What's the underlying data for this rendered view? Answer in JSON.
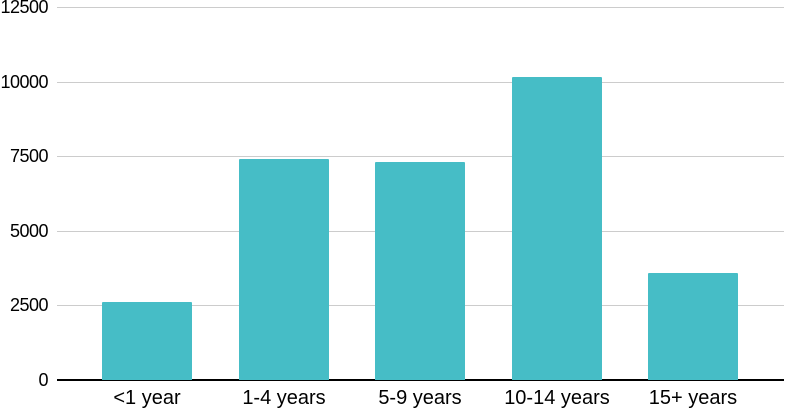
{
  "chart_data": {
    "type": "bar",
    "title": "",
    "xlabel": "",
    "ylabel": "",
    "categories": [
      "<1 year",
      "1-4 years",
      "5-9 years",
      "10-14 years",
      "15+ years"
    ],
    "values": [
      2600,
      7400,
      7300,
      10150,
      3600
    ],
    "ylim": [
      0,
      12500
    ],
    "yticks": [
      0,
      2500,
      5000,
      7500,
      10000,
      12500
    ],
    "ytick_labels": [
      "0",
      "2500",
      "5000",
      "7500",
      "10000",
      "12500"
    ],
    "grid": true,
    "legend": "none",
    "colors": {
      "bar": "#46BDC6",
      "gridline": "#cccccc",
      "axis_line": "#000000",
      "text": "#000000",
      "background": "#ffffff"
    }
  }
}
